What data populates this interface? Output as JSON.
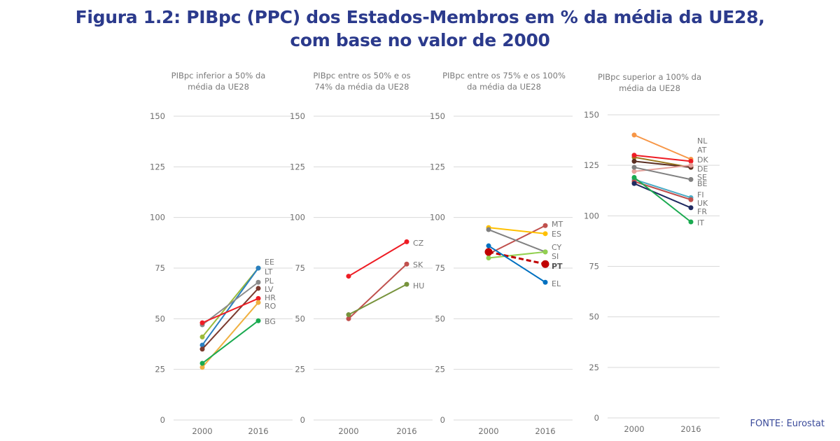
{
  "title_line1": "Figura 1.2: PIBpc (PPC) dos Estados-Membros em % da média da UE28,",
  "title_line2": "com base no valor de 2000",
  "source": "FONTE: Eurostat",
  "chart_data": [
    {
      "type": "line",
      "title": [
        "PIBpc inferior a 50% da",
        "média da UE28"
      ],
      "categories": [
        "2000",
        "2016"
      ],
      "ylim": [
        0,
        150
      ],
      "yticks": [
        0,
        25,
        50,
        75,
        100,
        125,
        150
      ],
      "grid": true,
      "series": [
        {
          "name": "EE",
          "values": [
            41,
            75
          ],
          "color": "#9bbb3b"
        },
        {
          "name": "LT",
          "values": [
            37,
            75
          ],
          "color": "#2a7fc0"
        },
        {
          "name": "PL",
          "values": [
            47,
            68
          ],
          "color": "#8a8a8a"
        },
        {
          "name": "LV",
          "values": [
            35,
            65
          ],
          "color": "#7b3a2e"
        },
        {
          "name": "HR",
          "values": [
            48,
            60
          ],
          "color": "#ee1c24"
        },
        {
          "name": "RO",
          "values": [
            26,
            58
          ],
          "color": "#f0b040"
        },
        {
          "name": "BG",
          "values": [
            28,
            49
          ],
          "color": "#1aaa50"
        }
      ],
      "labels": [
        "EE",
        "LT",
        "PL",
        "LV",
        "HR",
        "RO",
        "BG"
      ]
    },
    {
      "type": "line",
      "title": [
        "PIBpc entre os 50% e os",
        "74% da média da UE28"
      ],
      "categories": [
        "2000",
        "2016"
      ],
      "ylim": [
        0,
        150
      ],
      "yticks": [
        0,
        25,
        50,
        75,
        100,
        125,
        150
      ],
      "grid": true,
      "series": [
        {
          "name": "CZ",
          "values": [
            71,
            88
          ],
          "color": "#ee1c24"
        },
        {
          "name": "SK",
          "values": [
            50,
            77
          ],
          "color": "#c0504d"
        },
        {
          "name": "HU",
          "values": [
            52,
            67
          ],
          "color": "#77933c"
        }
      ],
      "labels": [
        "CZ",
        "SK",
        "HU"
      ]
    },
    {
      "type": "line",
      "title": [
        "PIBpc entre os 75% e os 100%",
        "da média da UE28"
      ],
      "categories": [
        "2000",
        "2016"
      ],
      "ylim": [
        0,
        150
      ],
      "yticks": [
        0,
        25,
        50,
        75,
        100,
        125,
        150
      ],
      "grid": true,
      "series": [
        {
          "name": "MT",
          "values": [
            82,
            96
          ],
          "color": "#c0504d"
        },
        {
          "name": "ES",
          "values": [
            95,
            92
          ],
          "color": "#ffc000"
        },
        {
          "name": "CY",
          "values": [
            94,
            83
          ],
          "color": "#808080"
        },
        {
          "name": "SI",
          "values": [
            80,
            83
          ],
          "color": "#92d050"
        },
        {
          "name": "PT",
          "values": [
            83,
            77
          ],
          "color": "#c00000",
          "dashed": true,
          "bold": true
        },
        {
          "name": "EL",
          "values": [
            86,
            68
          ],
          "color": "#0070c0"
        }
      ],
      "labels": [
        "MT",
        "ES",
        "CY",
        "SI",
        "PT",
        "EL"
      ]
    },
    {
      "type": "line",
      "title": [
        "PIBpc superior a 100% da",
        "média da UE28"
      ],
      "categories": [
        "2000",
        "2016"
      ],
      "ylim": [
        0,
        150
      ],
      "yticks": [
        0,
        25,
        50,
        75,
        100,
        125,
        150
      ],
      "grid": true,
      "series": [
        {
          "name": "NL",
          "values": [
            140,
            128
          ],
          "color": "#f79646"
        },
        {
          "name": "AT",
          "values": [
            129,
            124
          ],
          "color": "#9c7a1e"
        },
        {
          "name": "DK",
          "values": [
            130,
            127
          ],
          "color": "#ee1c24"
        },
        {
          "name": "DE",
          "values": [
            127,
            124
          ],
          "color": "#5a2e22"
        },
        {
          "name": "SE",
          "values": [
            122,
            125
          ],
          "color": "#e6a09a"
        },
        {
          "name": "BE",
          "values": [
            124,
            118
          ],
          "color": "#808080"
        },
        {
          "name": "FI",
          "values": [
            118,
            109
          ],
          "color": "#4bacc6"
        },
        {
          "name": "UK",
          "values": [
            117,
            108
          ],
          "color": "#c0504d"
        },
        {
          "name": "FR",
          "values": [
            116,
            104
          ],
          "color": "#1f2a60"
        },
        {
          "name": "IT",
          "values": [
            119,
            97
          ],
          "color": "#1aaa50"
        }
      ],
      "labels": [
        "NL",
        "AT",
        "DK",
        "DE",
        "SE",
        "BE",
        "FI",
        "UK",
        "FR",
        "IT"
      ]
    }
  ]
}
